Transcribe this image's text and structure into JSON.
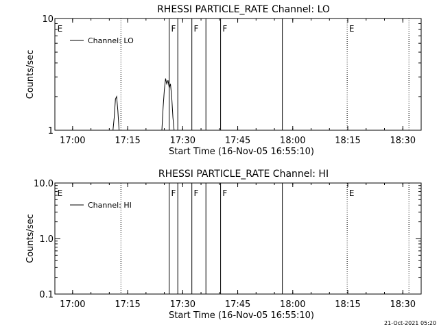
{
  "timestamp": "21-Oct-2021 05:20",
  "chart_data": [
    {
      "type": "line",
      "title": "RHESSI PARTICLE_RATE Channel: LO",
      "xlabel": "Start Time (16-Nov-05 16:55:10)",
      "ylabel": "Counts/sec",
      "xscale": "time",
      "yscale": "log",
      "xlim": [
        "16:55:10",
        "18:35:00"
      ],
      "ylim": [
        1,
        10
      ],
      "x_ticks": [
        "17:00",
        "17:15",
        "17:30",
        "17:45",
        "18:00",
        "18:15",
        "18:30"
      ],
      "y_ticks": [
        {
          "value": 1,
          "label": "1"
        },
        {
          "value": 10,
          "label": "10"
        }
      ],
      "legend": {
        "placement": "top-left",
        "label": "Channel: LO"
      },
      "series": [
        {
          "name": "Channel: LO",
          "points": [
            [
              "17:11:00",
              1
            ],
            [
              "17:11:20",
              1.3
            ],
            [
              "17:11:40",
              1.9
            ],
            [
              "17:12:00",
              2.0
            ],
            [
              "17:12:20",
              1.5
            ],
            [
              "17:12:40",
              1
            ],
            [
              "17:24:20",
              1
            ],
            [
              "17:24:40",
              1.6
            ],
            [
              "17:25:00",
              2.3
            ],
            [
              "17:25:20",
              2.9
            ],
            [
              "17:25:40",
              2.6
            ],
            [
              "17:26:00",
              2.8
            ],
            [
              "17:26:20",
              2.4
            ],
            [
              "17:26:40",
              2.6
            ],
            [
              "17:27:00",
              2.0
            ],
            [
              "17:27:20",
              1.3
            ],
            [
              "17:27:40",
              1
            ]
          ]
        }
      ],
      "markers": {
        "solid": [
          "17:26:20",
          "17:28:40",
          "17:32:30",
          "17:36:20",
          "17:40:20",
          "17:57:10"
        ],
        "dotted": [
          "17:13:10",
          "18:14:50",
          "18:31:40"
        ],
        "labels": [
          {
            "time": "16:55:40",
            "text": "E"
          },
          {
            "time": "17:26:40",
            "text": "F"
          },
          {
            "time": "17:32:50",
            "text": "F"
          },
          {
            "time": "17:40:40",
            "text": "F"
          },
          {
            "time": "18:15:10",
            "text": "E"
          }
        ]
      }
    },
    {
      "type": "line",
      "title": "RHESSI PARTICLE_RATE Channel: HI",
      "xlabel": "Start Time (16-Nov-05 16:55:10)",
      "ylabel": "Counts/sec",
      "xscale": "time",
      "yscale": "log",
      "xlim": [
        "16:55:10",
        "18:35:00"
      ],
      "ylim": [
        0.1,
        10
      ],
      "x_ticks": [
        "17:00",
        "17:15",
        "17:30",
        "17:45",
        "18:00",
        "18:15",
        "18:30"
      ],
      "y_ticks": [
        {
          "value": 0.1,
          "label": "0.1"
        },
        {
          "value": 1,
          "label": "1.0"
        },
        {
          "value": 10,
          "label": "10.0"
        }
      ],
      "legend": {
        "placement": "top-left",
        "label": "Channel: HI"
      },
      "series": [
        {
          "name": "Channel: HI",
          "points": []
        }
      ],
      "markers": {
        "solid": [
          "17:26:20",
          "17:28:40",
          "17:32:30",
          "17:36:20",
          "17:40:20",
          "17:57:10"
        ],
        "dotted": [
          "17:13:10",
          "18:14:50",
          "18:31:40"
        ],
        "labels": [
          {
            "time": "16:55:40",
            "text": "E"
          },
          {
            "time": "17:26:40",
            "text": "F"
          },
          {
            "time": "17:32:50",
            "text": "F"
          },
          {
            "time": "17:40:40",
            "text": "F"
          },
          {
            "time": "18:15:10",
            "text": "E"
          }
        ]
      }
    }
  ]
}
